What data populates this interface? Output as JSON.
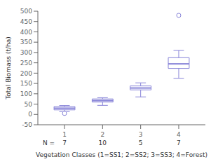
{
  "chart_data": {
    "type": "box",
    "xlabel": "Vegetation Classes (1=SS1; 2=SS2; 3=SS3; 4=Forest)",
    "ylabel": "Total Biomass (t/ha)",
    "x": [
      1,
      2,
      3,
      4
    ],
    "boxes": [
      {
        "med": 30,
        "q1": 22,
        "q3": 38,
        "whislo": 13,
        "whishi": 43,
        "fliers": [
          5
        ]
      },
      {
        "med": 67,
        "q1": 60,
        "q3": 75,
        "whislo": 44,
        "whishi": 81,
        "fliers": []
      },
      {
        "med": 128,
        "q1": 119,
        "q3": 138,
        "whislo": 85,
        "whishi": 153,
        "fliers": []
      },
      {
        "med": 245,
        "q1": 223,
        "q3": 275,
        "whislo": 175,
        "whishi": 310,
        "fliers": [
          480
        ]
      }
    ],
    "xlim": [
      0.3,
      4.7
    ],
    "xticks": [
      1,
      2,
      3,
      4
    ],
    "ylim": [
      -50,
      500
    ],
    "yticks": [
      -50,
      0,
      50,
      100,
      150,
      200,
      250,
      300,
      350,
      400,
      450,
      500
    ],
    "n_label": "N =",
    "n_values": [
      "7",
      "10",
      "5",
      "7"
    ]
  }
}
